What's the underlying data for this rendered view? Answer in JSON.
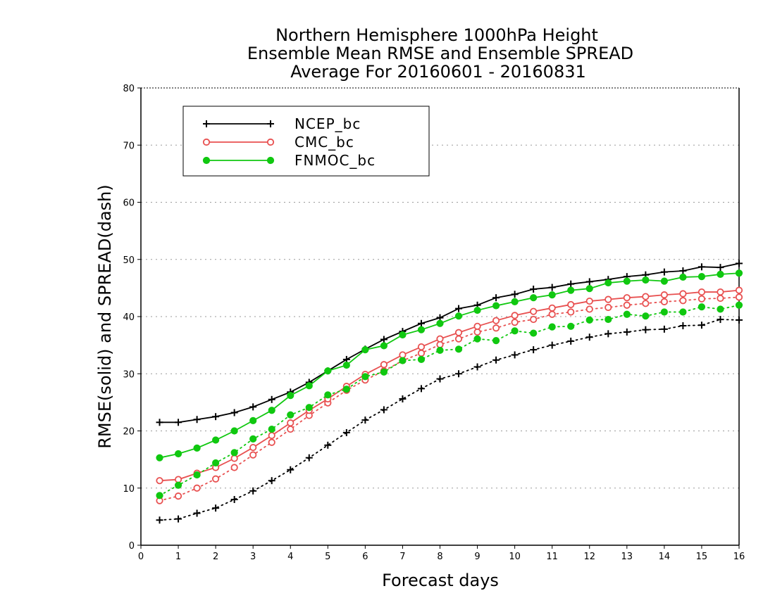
{
  "chart_data": {
    "type": "line",
    "title": [
      "Northern Hemisphere 1000hPa Height",
      "Ensemble Mean RMSE and Ensemble SPREAD",
      "Average For 20160601 - 20160831"
    ],
    "xlabel": "Forecast days",
    "ylabel": "RMSE(solid) and SPREAD(dash)",
    "xlim": [
      0,
      16
    ],
    "ylim": [
      0,
      80
    ],
    "xticks": [
      0,
      1,
      2,
      3,
      4,
      5,
      6,
      7,
      8,
      9,
      10,
      11,
      12,
      13,
      14,
      15,
      16
    ],
    "yticks": [
      0,
      10,
      20,
      30,
      40,
      50,
      60,
      70,
      80
    ],
    "grid": "horizontal dotted",
    "legend_position": "top-left",
    "x": [
      0.5,
      1,
      1.5,
      2,
      2.5,
      3,
      3.5,
      4,
      4.5,
      5,
      5.5,
      6,
      6.5,
      7,
      7.5,
      8,
      8.5,
      9,
      9.5,
      10,
      10.5,
      11,
      11.5,
      12,
      12.5,
      13,
      13.5,
      14,
      14.5,
      15,
      15.5,
      16
    ],
    "series": [
      {
        "name": "NCEP_bc",
        "color": "#000000",
        "marker": "plus",
        "rmse": [
          21.5,
          21.5,
          22.0,
          22.5,
          23.2,
          24.2,
          25.5,
          26.8,
          28.5,
          30.5,
          32.5,
          34.3,
          36.0,
          37.4,
          38.8,
          39.8,
          41.4,
          42.0,
          43.3,
          43.9,
          44.8,
          45.1,
          45.7,
          46.1,
          46.5,
          47.0,
          47.3,
          47.8,
          48.0,
          48.7,
          48.6,
          49.3
        ],
        "spread": [
          4.4,
          4.6,
          5.6,
          6.5,
          8.0,
          9.5,
          11.3,
          13.2,
          15.3,
          17.5,
          19.7,
          21.9,
          23.7,
          25.6,
          27.4,
          29.1,
          30.0,
          31.2,
          32.4,
          33.3,
          34.2,
          35.0,
          35.7,
          36.4,
          37.0,
          37.3,
          37.7,
          37.8,
          38.4,
          38.5,
          39.5,
          39.4
        ]
      },
      {
        "name": "CMC_bc",
        "color": "#e85050",
        "marker": "open-circle",
        "rmse": [
          11.3,
          11.5,
          12.6,
          13.6,
          15.2,
          17.1,
          19.2,
          21.4,
          23.6,
          25.6,
          27.8,
          29.9,
          31.6,
          33.3,
          34.7,
          36.1,
          37.2,
          38.3,
          39.3,
          40.2,
          40.9,
          41.5,
          42.1,
          42.7,
          43.0,
          43.3,
          43.5,
          43.8,
          44.0,
          44.3,
          44.3,
          44.6
        ],
        "spread": [
          7.8,
          8.6,
          10.0,
          11.6,
          13.6,
          15.8,
          18.0,
          20.3,
          22.7,
          24.9,
          27.1,
          28.9,
          30.5,
          32.3,
          33.6,
          35.1,
          36.1,
          37.3,
          38.0,
          39.0,
          39.5,
          40.4,
          40.8,
          41.3,
          41.6,
          42.0,
          42.3,
          42.6,
          42.8,
          43.1,
          43.2,
          43.4
        ]
      },
      {
        "name": "FNMOC_bc",
        "color": "#10c810",
        "marker": "filled-circle",
        "rmse": [
          15.3,
          16.0,
          17.0,
          18.4,
          20.0,
          21.8,
          23.6,
          26.2,
          27.9,
          30.5,
          31.5,
          34.2,
          34.9,
          36.8,
          37.7,
          38.8,
          40.1,
          41.1,
          41.9,
          42.6,
          43.3,
          43.8,
          44.6,
          44.9,
          45.9,
          46.2,
          46.4,
          46.2,
          46.9,
          47.0,
          47.4,
          47.6
        ],
        "spread": [
          8.7,
          10.5,
          12.3,
          14.4,
          16.2,
          18.6,
          20.3,
          22.8,
          24.1,
          26.3,
          27.3,
          29.5,
          30.3,
          32.3,
          32.5,
          34.1,
          34.3,
          36.1,
          35.8,
          37.5,
          37.1,
          38.2,
          38.3,
          39.4,
          39.5,
          40.4,
          40.1,
          40.8,
          40.8,
          41.7,
          41.3,
          42.0
        ]
      }
    ]
  }
}
